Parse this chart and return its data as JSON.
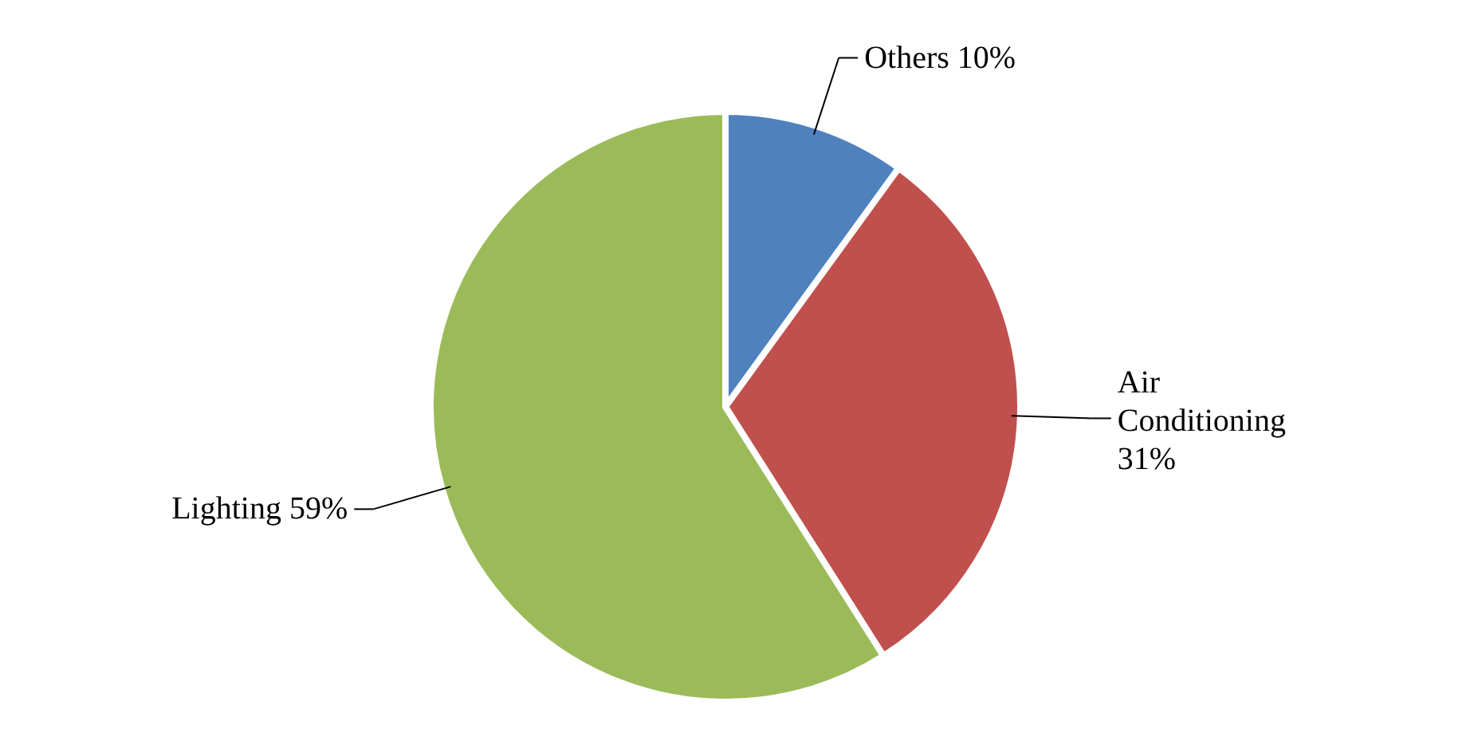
{
  "chart_data": {
    "type": "pie",
    "categories": [
      "Others",
      "Air Conditioning",
      "Lighting"
    ],
    "values": [
      10,
      31,
      59
    ],
    "colors": [
      "#4f81bd",
      "#c0504d",
      "#9bbb59"
    ],
    "value_labels": [
      "10%",
      "31%",
      "59%"
    ]
  }
}
